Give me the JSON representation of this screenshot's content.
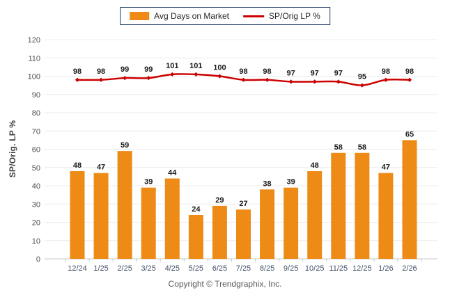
{
  "legend": {
    "entries": [
      {
        "label": "Avg Days on Market",
        "swatch": "bar-swatch",
        "color": "#EE8B17"
      },
      {
        "label": "SP/Orig LP %",
        "swatch": "line-swatch",
        "color": "#CC0000"
      }
    ]
  },
  "chart_data": {
    "type": "bar+line",
    "categories": [
      "12/24",
      "1/25",
      "2/25",
      "3/25",
      "4/25",
      "5/25",
      "6/25",
      "7/25",
      "8/25",
      "9/25",
      "10/25",
      "11/25",
      "12/25",
      "1/26",
      "2/26"
    ],
    "series": [
      {
        "name": "Avg Days on Market",
        "type": "bar",
        "color": "#EE8B17",
        "values": [
          48,
          47,
          59,
          39,
          44,
          24,
          29,
          27,
          38,
          39,
          48,
          58,
          58,
          47,
          65
        ]
      },
      {
        "name": "SP/Orig LP %",
        "type": "line",
        "color": "#CC0000",
        "values": [
          98,
          98,
          99,
          99,
          101,
          101,
          100,
          98,
          98,
          97,
          97,
          97,
          95,
          98,
          98
        ]
      }
    ],
    "ylabel": "SP/Orig. LP %",
    "ylim": [
      0,
      120
    ],
    "ytick_step": 10,
    "grid": true,
    "legend_position": "top-center",
    "value_labels": true
  },
  "footer": {
    "copyright": "Copyright © Trendgraphix, Inc."
  },
  "colors": {
    "bar": "#EE8B17",
    "line": "#CC0000",
    "legend_border": "#1F3864",
    "gridline": "#ECECEC",
    "baseline": "#C8C8C8",
    "x_tick_label": "#44546A",
    "y_tick_label": "#4D4D4D",
    "value_label": "#1A1A1A",
    "axis_title": "#404040",
    "copyright_text": "#595959"
  }
}
